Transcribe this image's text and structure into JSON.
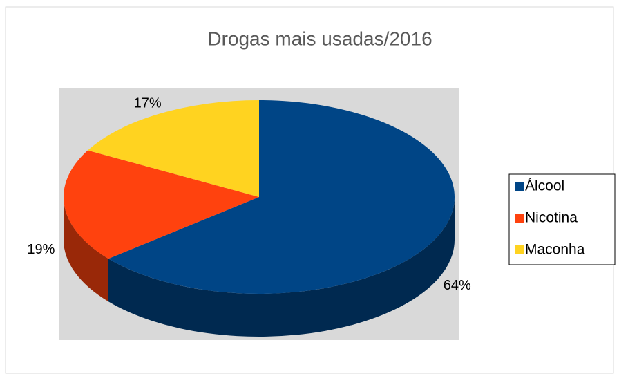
{
  "chart_data": {
    "type": "pie",
    "title": "Drogas mais usadas/2016",
    "categories": [
      "Álcool",
      "Nicotina",
      "Maconha"
    ],
    "values": [
      64,
      19,
      17
    ],
    "value_labels": [
      "64%",
      "19%",
      "17%"
    ],
    "colors": [
      "#004586",
      "#ff420e",
      "#ffd320"
    ],
    "legend": "right"
  }
}
